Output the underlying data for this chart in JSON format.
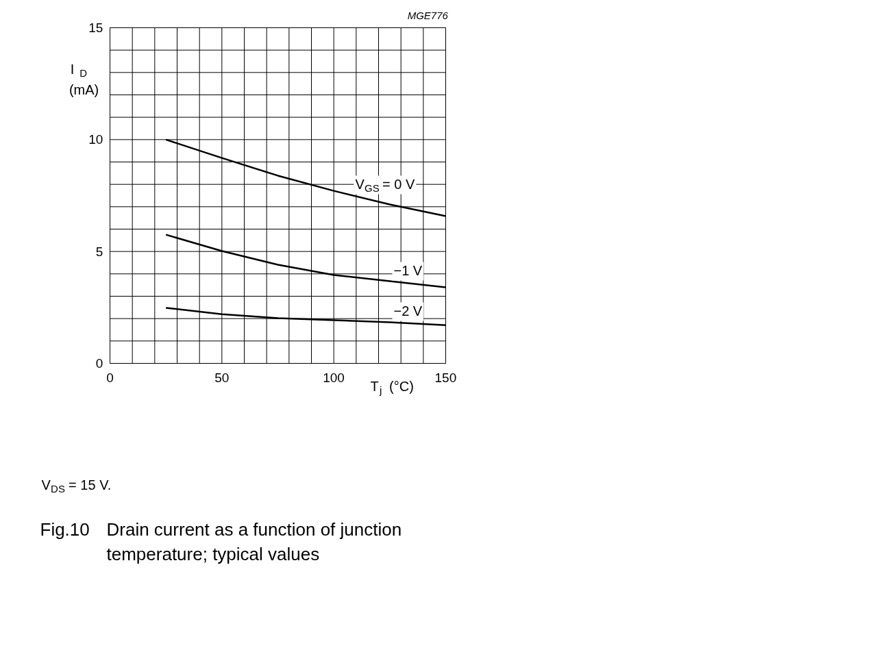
{
  "chart_data": {
    "type": "line",
    "title": "Fig.10",
    "subtitle": "Drain current as a function of junction temperature; typical values",
    "xlabel": "T$_{j}$ (°C)",
    "ylabel": "I$_{D}$\n(mA)",
    "x": [
      25,
      50,
      75,
      100,
      125,
      150
    ],
    "series": [
      {
        "name": "V$_{GS}$ = 0 V",
        "color": "#000000",
        "values": [
          10.0,
          9.18,
          8.39,
          7.71,
          7.1,
          6.58
        ]
      },
      {
        "name": "−1 V",
        "color": "#000000",
        "values": [
          5.75,
          5.02,
          4.41,
          3.95,
          3.67,
          3.4
        ]
      },
      {
        "name": "−2 V",
        "color": "#000000",
        "values": [
          2.48,
          2.2,
          2.02,
          1.93,
          1.84,
          1.71
        ]
      }
    ],
    "xlim": [
      0,
      150
    ],
    "ylim": [
      0,
      15
    ],
    "xticks": [
      0,
      {
        "value": 10,
        "label": null
      },
      {
        "value": 20,
        "label": null
      },
      {
        "value": 30,
        "label": null
      },
      {
        "value": 40,
        "label": null
      },
      50,
      {
        "value": 60,
        "label": null
      },
      {
        "value": 70,
        "label": null
      },
      {
        "value": 80,
        "label": null
      },
      {
        "value": 90,
        "label": null
      },
      100,
      {
        "value": 110,
        "label": null
      },
      {
        "value": 120,
        "label": null
      },
      {
        "value": 130,
        "label": null
      },
      {
        "value": 140,
        "label": null
      },
      150
    ],
    "yticks": [
      0,
      {
        "value": 1,
        "label": null
      },
      {
        "value": 2,
        "label": null
      },
      {
        "value": 3,
        "label": null
      },
      {
        "value": 4,
        "label": null
      },
      5,
      {
        "value": 6,
        "label": null
      },
      {
        "value": 7,
        "label": null
      },
      {
        "value": 8,
        "label": null
      },
      {
        "value": 9,
        "label": null
      },
      10,
      {
        "value": 11,
        "label": null
      },
      {
        "value": 12,
        "label": null
      },
      {
        "value": 13,
        "label": null
      },
      {
        "value": 14,
        "label": null
      },
      15
    ],
    "grid": true,
    "marker": "none",
    "line_style": "solid",
    "annotations": [
      "MGE776",
      "V$_{DS}$ = 15 V."
    ]
  }
}
